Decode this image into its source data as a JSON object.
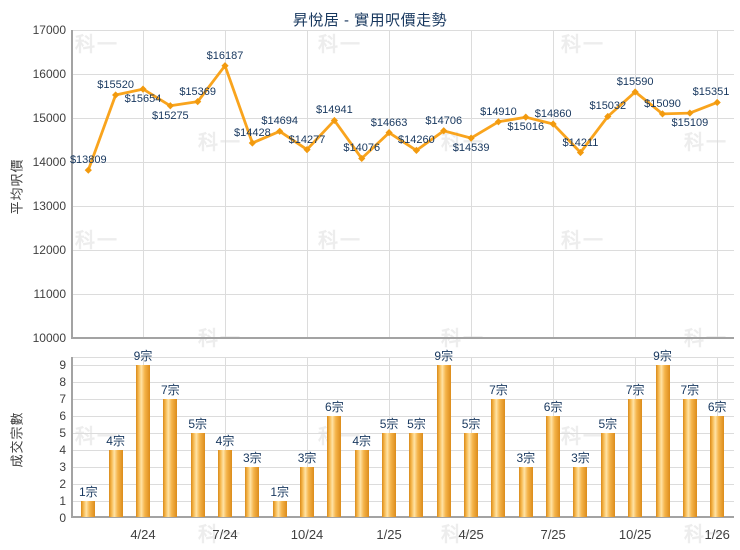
{
  "page": {
    "title": "昇悅居 - 實用呎價走勢",
    "watermark_text": "科一"
  },
  "colors": {
    "accent_orange": "#F9A41D",
    "marker_orange": "#F29A0E",
    "bar_gradient": [
      "#D98A19",
      "#F6B84E",
      "#FFE3A5",
      "#F5B44A",
      "#DC8C1B"
    ],
    "label_navy": "#17375E",
    "tick_text": "#3F3F3F",
    "grid": "#DCDCDC",
    "axis_line": "#A3A3A3",
    "watermark": "#EDEDED"
  },
  "chart_data": [
    {
      "type": "line",
      "title": "昇悅居 - 實用呎價走勢",
      "ylabel": "平均呎價",
      "ylim": [
        10000,
        17000
      ],
      "yticks": [
        17000,
        16000,
        15000,
        14000,
        13000,
        12000,
        11000,
        10000
      ],
      "x_tick_labels": [
        "4/24",
        "7/24",
        "10/24",
        "1/25",
        "4/25",
        "7/25",
        "10/25",
        "1/26"
      ],
      "x_tick_indices": [
        2,
        5,
        8,
        11,
        14,
        17,
        20,
        23
      ],
      "values": [
        13809,
        15520,
        15654,
        15275,
        15369,
        16187,
        14428,
        14694,
        14277,
        14941,
        14076,
        14663,
        14260,
        14706,
        14539,
        14910,
        15016,
        14860,
        14211,
        15032,
        15590,
        15090,
        15109,
        15351
      ],
      "label_prefix": "$",
      "labels_below_indices": [
        2,
        3,
        14,
        16,
        22
      ],
      "grid": true,
      "legend": "none"
    },
    {
      "type": "bar",
      "ylabel": "成交宗數",
      "ylim": [
        0,
        9
      ],
      "yticks": [
        9,
        8,
        7,
        6,
        5,
        4,
        3,
        2,
        1,
        0
      ],
      "x_tick_labels": [
        "4/24",
        "7/24",
        "10/24",
        "1/25",
        "4/25",
        "7/25",
        "10/25",
        "1/26"
      ],
      "x_tick_indices": [
        2,
        5,
        8,
        11,
        14,
        17,
        20,
        23
      ],
      "values": [
        1,
        4,
        9,
        7,
        5,
        4,
        3,
        1,
        3,
        6,
        4,
        5,
        5,
        9,
        5,
        7,
        3,
        6,
        3,
        5,
        7,
        9,
        7,
        6
      ],
      "label_suffix": "宗",
      "grid": true,
      "legend": "none"
    }
  ]
}
